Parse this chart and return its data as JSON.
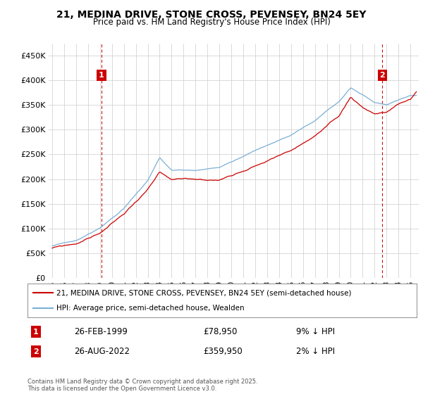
{
  "title": "21, MEDINA DRIVE, STONE CROSS, PEVENSEY, BN24 5EY",
  "subtitle": "Price paid vs. HM Land Registry's House Price Index (HPI)",
  "legend_line1": "21, MEDINA DRIVE, STONE CROSS, PEVENSEY, BN24 5EY (semi-detached house)",
  "legend_line2": "HPI: Average price, semi-detached house, Wealden",
  "annotation1_label": "1",
  "annotation1_date": "26-FEB-1999",
  "annotation1_price": "£78,950",
  "annotation1_hpi": "9% ↓ HPI",
  "annotation2_label": "2",
  "annotation2_date": "26-AUG-2022",
  "annotation2_price": "£359,950",
  "annotation2_hpi": "2% ↓ HPI",
  "footer": "Contains HM Land Registry data © Crown copyright and database right 2025.\nThis data is licensed under the Open Government Licence v3.0.",
  "sale_color": "#cc0000",
  "hpi_color": "#7bafd4",
  "annotation_color": "#cc0000",
  "background_color": "#ffffff",
  "grid_color": "#cccccc",
  "ylim": [
    0,
    475000
  ],
  "yticks": [
    0,
    50000,
    100000,
    150000,
    200000,
    250000,
    300000,
    350000,
    400000,
    450000
  ],
  "ytick_labels": [
    "£0",
    "£50K",
    "£100K",
    "£150K",
    "£200K",
    "£250K",
    "£300K",
    "£350K",
    "£400K",
    "£450K"
  ],
  "sale1_x": 1999.13,
  "sale1_y": 78950,
  "sale2_x": 2022.64,
  "sale2_y": 359950,
  "xlim_left": 1994.7,
  "xlim_right": 2025.7
}
